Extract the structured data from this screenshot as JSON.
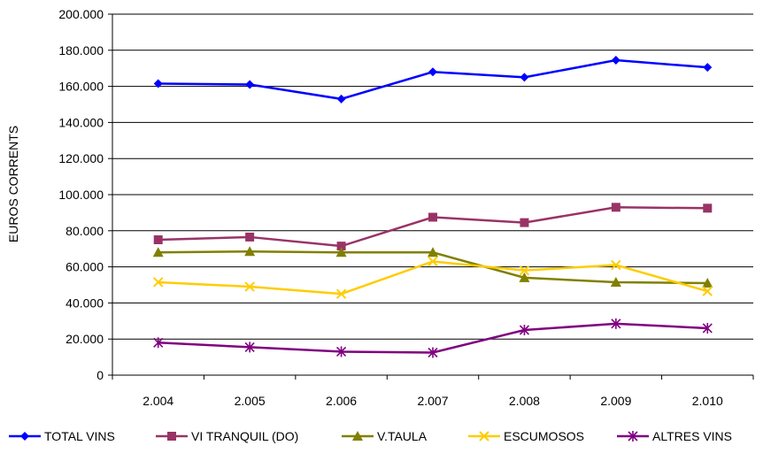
{
  "chart_data": {
    "type": "line",
    "title": "",
    "xlabel": "",
    "ylabel": "EUROS CORRENTS",
    "categories": [
      "2.004",
      "2.005",
      "2.006",
      "2.007",
      "2.008",
      "2.009",
      "2.010"
    ],
    "ylim": [
      0,
      200000
    ],
    "yticks": [
      0,
      20000,
      40000,
      60000,
      80000,
      100000,
      120000,
      140000,
      160000,
      180000,
      200000
    ],
    "ytick_labels": [
      "0",
      "20.000",
      "40.000",
      "60.000",
      "80.000",
      "100.000",
      "120.000",
      "140.000",
      "160.000",
      "180.000",
      "200.000"
    ],
    "grid": "horizontal",
    "legend_position": "bottom",
    "series": [
      {
        "name": "TOTAL VINS",
        "color": "#0000FF",
        "marker": "diamond",
        "values": [
          161500,
          161000,
          153000,
          168000,
          165000,
          174500,
          170500
        ]
      },
      {
        "name": "VI TRANQUIL (DO)",
        "color": "#993366",
        "marker": "square",
        "values": [
          75000,
          76500,
          71500,
          87500,
          84500,
          93000,
          92500
        ]
      },
      {
        "name": "V.TAULA",
        "color": "#808000",
        "marker": "triangle",
        "values": [
          68000,
          68500,
          68000,
          68000,
          54000,
          51500,
          51000
        ]
      },
      {
        "name": "ESCUMOSOS",
        "color": "#FFCC00",
        "marker": "x",
        "values": [
          51500,
          49000,
          45000,
          63000,
          58000,
          61000,
          46500
        ]
      },
      {
        "name": "ALTRES VINS",
        "color": "#800080",
        "marker": "star",
        "values": [
          18000,
          15500,
          13000,
          12500,
          25000,
          28500,
          26000
        ]
      }
    ]
  }
}
